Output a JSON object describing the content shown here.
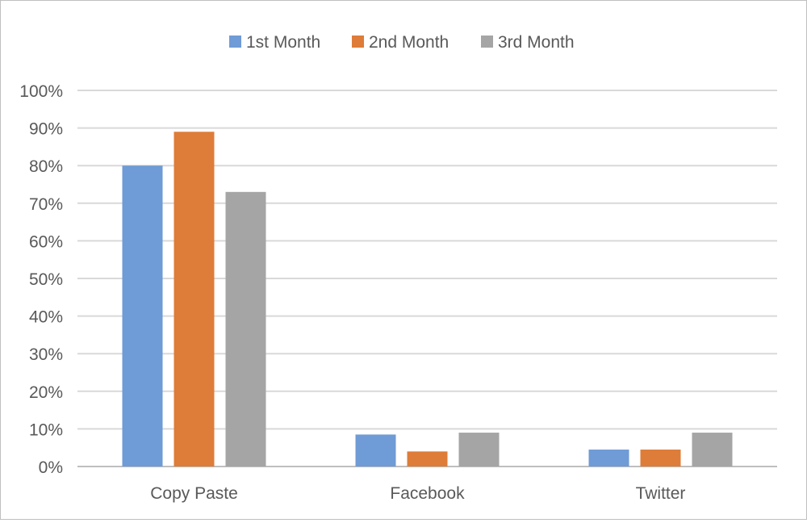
{
  "chart_data": {
    "type": "bar",
    "title": "",
    "xlabel": "",
    "ylabel": "",
    "categories": [
      "Copy Paste",
      "Facebook",
      "Twitter"
    ],
    "series": [
      {
        "name": "1st Month",
        "values": [
          80,
          8.5,
          4.5
        ],
        "color": "#6f9bd6"
      },
      {
        "name": "2nd Month",
        "values": [
          89,
          4,
          4.5
        ],
        "color": "#de7c39"
      },
      {
        "name": "3rd Month",
        "values": [
          73,
          9,
          9
        ],
        "color": "#a5a5a5"
      }
    ],
    "ylim": [
      0,
      100
    ],
    "yticks": [
      0,
      10,
      20,
      30,
      40,
      50,
      60,
      70,
      80,
      90,
      100
    ],
    "ytick_labels": [
      "0%",
      "10%",
      "20%",
      "30%",
      "40%",
      "50%",
      "60%",
      "70%",
      "80%",
      "90%",
      "100%"
    ],
    "grid": true,
    "legend_position": "top-center"
  }
}
